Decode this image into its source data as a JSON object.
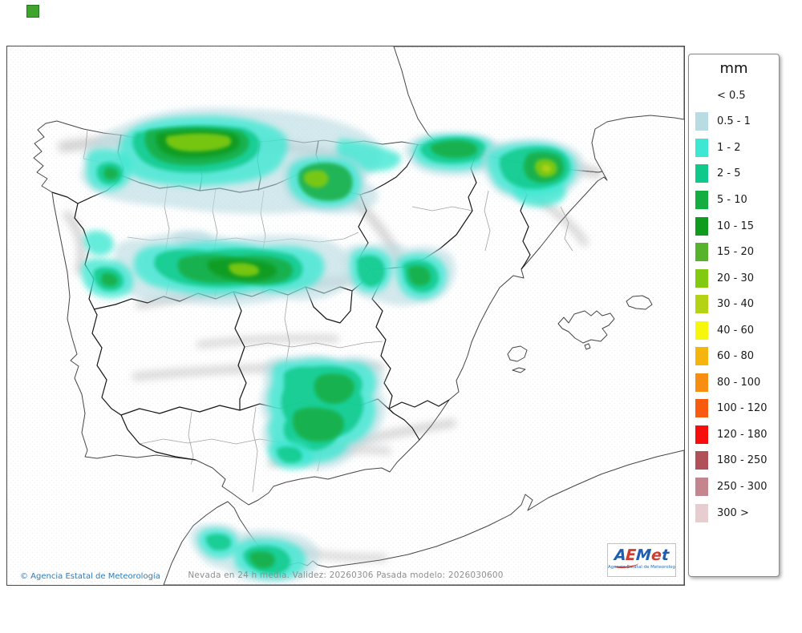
{
  "corner_marker": {
    "color": "#3fa42e"
  },
  "map": {
    "caption": "Nevada en 24 h media. Validez: 20260306 Pasada modelo: 2026030600",
    "copyright": "© Agencia Estatal de Meteorología",
    "sea_color": "#ffffff",
    "land_color": "#e9e9e9",
    "coastline_color": "#454545",
    "region_border_color": "#151515",
    "province_border_color": "#a3a3a3"
  },
  "legend": {
    "title": "mm",
    "items": [
      {
        "label": "< 0.5",
        "color": null
      },
      {
        "label": "0.5 - 1",
        "color": "#b8dce2"
      },
      {
        "label": "1 - 2",
        "color": "#3ee7d2"
      },
      {
        "label": "2 - 5",
        "color": "#0fc98b"
      },
      {
        "label": "5 - 10",
        "color": "#14ad42"
      },
      {
        "label": "10 - 15",
        "color": "#0f9b1d"
      },
      {
        "label": "15 - 20",
        "color": "#57b32b"
      },
      {
        "label": "20 - 30",
        "color": "#82ca0f"
      },
      {
        "label": "30 - 40",
        "color": "#b3d314"
      },
      {
        "label": "40 - 60",
        "color": "#f7f70e"
      },
      {
        "label": "60 - 80",
        "color": "#f5b40e"
      },
      {
        "label": "80 - 100",
        "color": "#f78e12"
      },
      {
        "label": "100 - 120",
        "color": "#f85b0d"
      },
      {
        "label": "120 - 180",
        "color": "#f70d0d"
      },
      {
        "label": "180 - 250",
        "color": "#b2505a"
      },
      {
        "label": "250 - 300",
        "color": "#c4858e"
      },
      {
        "label": "300 >",
        "color": "#e8cdd0"
      }
    ]
  },
  "logo": {
    "letters": [
      {
        "ch": "A",
        "color": "#1f5cb4"
      },
      {
        "ch": "E",
        "color": "#d23b2f"
      },
      {
        "ch": "M",
        "color": "#1f5cb4"
      },
      {
        "ch": "e",
        "color": "#d23b2f"
      },
      {
        "ch": "t",
        "color": "#1f5cb4"
      }
    ],
    "subtitle": "Agencia Estatal de Meteorología"
  }
}
